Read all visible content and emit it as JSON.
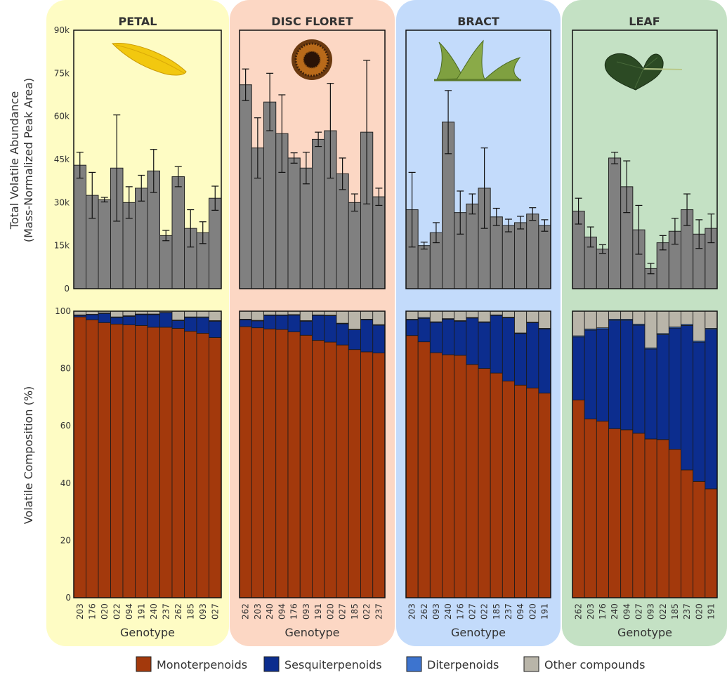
{
  "colors": {
    "panel_bg": [
      "#fefcc4",
      "#fcd7c4",
      "#c3dbfb",
      "#c4e1c4"
    ],
    "bar_gray": "#808080",
    "mono": "#a3390c",
    "sesqui": "#0c2d8e",
    "diter": "#3d74cf",
    "other": "#b9b5a9"
  },
  "icons": [
    "petal-image",
    "disc-floret-image",
    "bract-image",
    "leaf-image"
  ],
  "legend": [
    {
      "label": "Monoterpenoids",
      "key": "mono"
    },
    {
      "label": "Sesquiterpenoids",
      "key": "sesqui"
    },
    {
      "label": "Diterpenoids",
      "key": "diter"
    },
    {
      "label": "Other compounds",
      "key": "other"
    }
  ],
  "chart_data": [
    {
      "type": "bar",
      "panel": "PETAL",
      "ylabel": "Total Volatile Abundance\n(Mass-Normalized Peak Area)",
      "ylim": [
        0,
        90000
      ],
      "yticks": [
        "0",
        "15k",
        "30k",
        "45k",
        "60k",
        "75k",
        "90k"
      ],
      "abundance": {
        "categories": [
          "203",
          "176",
          "020",
          "022",
          "094",
          "191",
          "240",
          "237",
          "262",
          "185",
          "093",
          "027"
        ],
        "values": [
          43000,
          32500,
          31000,
          42000,
          30000,
          35000,
          41000,
          18500,
          39000,
          21000,
          19500,
          31500
        ],
        "err": [
          4500,
          8000,
          800,
          18500,
          5500,
          4500,
          7500,
          1800,
          3500,
          6500,
          3800,
          4200
        ]
      },
      "composition": {
        "ylabel": "Volatile Composition (%)",
        "ylim": [
          0,
          100
        ],
        "yticks": [
          "0",
          "20",
          "40",
          "60",
          "80",
          "100"
        ],
        "categories": [
          "203",
          "176",
          "020",
          "022",
          "094",
          "191",
          "240",
          "237",
          "262",
          "185",
          "093",
          "027"
        ],
        "mono": [
          98,
          97,
          96,
          95.5,
          95.2,
          95,
          94.4,
          94.4,
          94,
          93,
          92.3,
          90.8
        ],
        "sesqui": [
          0.5,
          1.8,
          3.2,
          2.3,
          3,
          3.8,
          4.4,
          5.1,
          2.7,
          4.8,
          5.4,
          5.7
        ],
        "diter": [
          0.2,
          0.1,
          0.2,
          0.2,
          0.2,
          0.2,
          0.2,
          0.1,
          0.2,
          0.2,
          0.3,
          0.2
        ],
        "xlabel": "Genotype"
      }
    },
    {
      "type": "bar",
      "panel": "DISC FLORET",
      "ylim": [
        0,
        90000
      ],
      "abundance": {
        "categories": [
          "262",
          "203",
          "240",
          "094",
          "176",
          "093",
          "191",
          "020",
          "027",
          "185",
          "022",
          "237"
        ],
        "values": [
          71000,
          49000,
          65000,
          54000,
          45500,
          42000,
          52000,
          55000,
          40000,
          30000,
          54500,
          32000
        ],
        "err": [
          5500,
          10500,
          10000,
          13500,
          1800,
          5500,
          2500,
          16500,
          5500,
          3000,
          25000,
          3000
        ]
      },
      "composition": {
        "categories": [
          "262",
          "203",
          "240",
          "094",
          "176",
          "093",
          "191",
          "020",
          "027",
          "185",
          "022",
          "237"
        ],
        "mono": [
          94.6,
          94.2,
          93.8,
          93.6,
          92.8,
          91.6,
          89.8,
          89.2,
          88.2,
          86.6,
          85.8,
          85.4
        ],
        "sesqui": [
          2.4,
          2.4,
          4.7,
          4.9,
          5.8,
          4.9,
          8.7,
          9.2,
          7.4,
          6.9,
          11.2,
          9.7
        ],
        "diter": [
          0.2,
          0.2,
          0.2,
          0.2,
          0.2,
          0.2,
          0.2,
          0.2,
          0.2,
          0.2,
          0.2,
          0.2
        ],
        "xlabel": "Genotype"
      }
    },
    {
      "type": "bar",
      "panel": "BRACT",
      "ylim": [
        0,
        90000
      ],
      "abundance": {
        "categories": [
          "203",
          "262",
          "093",
          "240",
          "176",
          "027",
          "022",
          "185",
          "237",
          "094",
          "020",
          "191"
        ],
        "values": [
          27500,
          15000,
          19500,
          58000,
          26500,
          29500,
          35000,
          25000,
          22000,
          23000,
          26000,
          22000
        ],
        "err": [
          13000,
          1200,
          3500,
          11000,
          7500,
          3500,
          14000,
          3000,
          2200,
          2200,
          2200,
          2000
        ]
      },
      "composition": {
        "categories": [
          "203",
          "262",
          "093",
          "240",
          "176",
          "027",
          "022",
          "185",
          "237",
          "094",
          "020",
          "191"
        ],
        "mono": [
          91.5,
          89.3,
          85.5,
          84.8,
          84.6,
          81.4,
          80,
          78.4,
          75.6,
          74.2,
          73.2,
          71.4
        ],
        "sesqui": [
          5.4,
          8.2,
          10.6,
          12.4,
          11.9,
          16.2,
          16.1,
          20.1,
          22.1,
          18,
          22.8,
          22.4
        ],
        "diter": [
          0.3,
          0.3,
          0.2,
          0.2,
          0.2,
          0.2,
          0.2,
          0.2,
          0.2,
          0.2,
          0.2,
          0.2
        ],
        "xlabel": "Genotype"
      }
    },
    {
      "type": "bar",
      "panel": "LEAF",
      "ylim": [
        0,
        90000
      ],
      "abundance": {
        "categories": [
          "262",
          "203",
          "176",
          "240",
          "094",
          "027",
          "093",
          "022",
          "185",
          "237",
          "020",
          "191"
        ],
        "values": [
          27000,
          18000,
          13800,
          45500,
          35500,
          20500,
          7000,
          16000,
          20000,
          27500,
          19000,
          21000
        ],
        "err": [
          4500,
          3500,
          1500,
          2000,
          9000,
          8500,
          1800,
          2500,
          4500,
          5500,
          5000,
          5000
        ]
      },
      "composition": {
        "categories": [
          "262",
          "203",
          "176",
          "240",
          "094",
          "027",
          "093",
          "022",
          "185",
          "237",
          "020",
          "191"
        ],
        "mono": [
          69,
          62.4,
          61.6,
          59,
          58.6,
          57.4,
          55.4,
          55.2,
          51.8,
          44.6,
          40.6,
          38
        ],
        "sesqui": [
          22,
          31,
          32.2,
          37.8,
          38.2,
          37.7,
          31.4,
          36.6,
          42.3,
          50.4,
          48.6,
          55.6
        ],
        "diter": [
          0.4,
          0.4,
          0.4,
          0.4,
          0.4,
          0.4,
          0.4,
          0.4,
          0.4,
          0.4,
          0.4,
          0.4
        ],
        "xlabel": "Genotype"
      }
    }
  ]
}
